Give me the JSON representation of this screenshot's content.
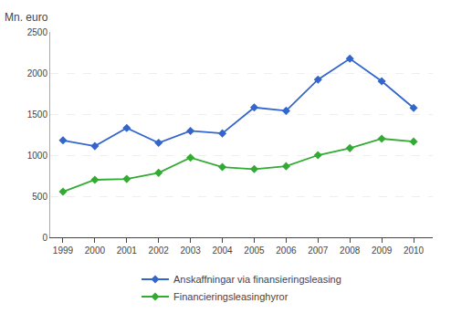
{
  "chart_data": {
    "type": "line",
    "ylabel": "Mn. euro",
    "x": [
      1999,
      2000,
      2001,
      2002,
      2003,
      2004,
      2005,
      2006,
      2007,
      2008,
      2009,
      2010
    ],
    "series": [
      {
        "name": "Anskaffningar via finansieringsleasing",
        "color": "#3366CC",
        "values": [
          1180,
          1110,
          1330,
          1150,
          1295,
          1265,
          1580,
          1540,
          1920,
          2175,
          1900,
          1575
        ]
      },
      {
        "name": "Financieringsleasinghyror",
        "color": "#33AA33",
        "values": [
          555,
          700,
          710,
          785,
          970,
          855,
          830,
          865,
          1000,
          1085,
          1200,
          1165
        ]
      }
    ],
    "marker": "diamond",
    "xlim": [
      1998.6,
      2010.6
    ],
    "xticks": [
      1999,
      2000,
      2001,
      2002,
      2003,
      2004,
      2005,
      2006,
      2007,
      2008,
      2009,
      2010
    ],
    "ylim": [
      0,
      2500
    ],
    "yticks": [
      0,
      500,
      1000,
      1500,
      2000,
      2500
    ],
    "grid": true,
    "legend": "bottom"
  }
}
